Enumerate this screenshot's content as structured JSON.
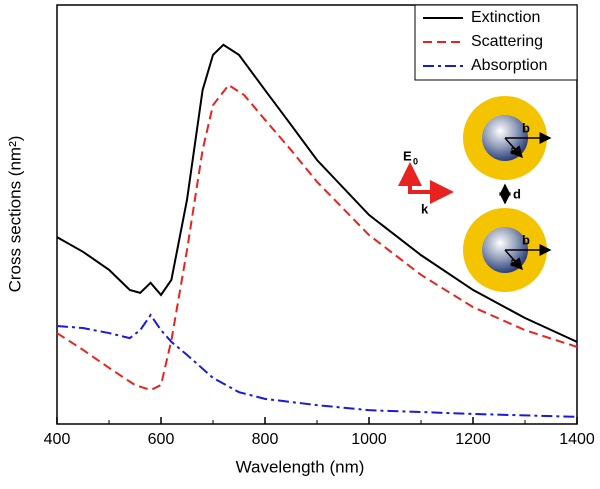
{
  "chart_data": {
    "type": "line",
    "xlabel": "Wavelength (nm)",
    "ylabel": "Cross sections (nm²)",
    "xlim": [
      400,
      1400
    ],
    "xticks": [
      400,
      600,
      800,
      1000,
      1200,
      1400
    ],
    "xminorticks": [
      500,
      700,
      900,
      1100,
      1300
    ],
    "ylim": [
      0,
      100
    ],
    "yticks": [],
    "legend": "upper right",
    "series": [
      {
        "name": "Extinction",
        "color": "#000000",
        "dash": "solid",
        "x": [
          400,
          450,
          500,
          540,
          560,
          580,
          600,
          620,
          650,
          680,
          700,
          720,
          750,
          800,
          850,
          900,
          1000,
          1100,
          1200,
          1300,
          1400
        ],
        "values": [
          44.6,
          41.1,
          36.8,
          32.0,
          31.3,
          33.7,
          30.8,
          34.4,
          53.5,
          79.7,
          88.1,
          90.5,
          88.1,
          79.7,
          71.4,
          63.0,
          49.9,
          40.3,
          32.0,
          25.3,
          19.6
        ]
      },
      {
        "name": "Scattering",
        "color": "#e8231f",
        "dash": "dashed",
        "x": [
          400,
          450,
          500,
          550,
          580,
          600,
          620,
          650,
          680,
          700,
          730,
          760,
          800,
          850,
          900,
          1000,
          1100,
          1200,
          1300,
          1400
        ],
        "values": [
          21.7,
          17.7,
          13.4,
          9.3,
          8.1,
          9.3,
          20.0,
          41.5,
          65.4,
          76.1,
          80.9,
          78.5,
          72.6,
          65.4,
          57.8,
          45.1,
          35.6,
          27.9,
          22.4,
          18.4
        ]
      },
      {
        "name": "Absorption",
        "color": "#1a1adb",
        "dash": "dashdot",
        "x": [
          400,
          450,
          500,
          540,
          560,
          580,
          600,
          620,
          650,
          700,
          750,
          800,
          900,
          1000,
          1200,
          1400
        ],
        "values": [
          23.4,
          22.9,
          21.7,
          20.5,
          22.4,
          26.0,
          22.4,
          19.6,
          16.5,
          11.0,
          7.6,
          6.0,
          4.5,
          3.3,
          2.4,
          1.7
        ]
      }
    ],
    "inset": {
      "field": "E",
      "field_sub": "0",
      "wavevector": "k",
      "radius_inner": "a",
      "radius_outer": "b",
      "gap": "d"
    }
  }
}
